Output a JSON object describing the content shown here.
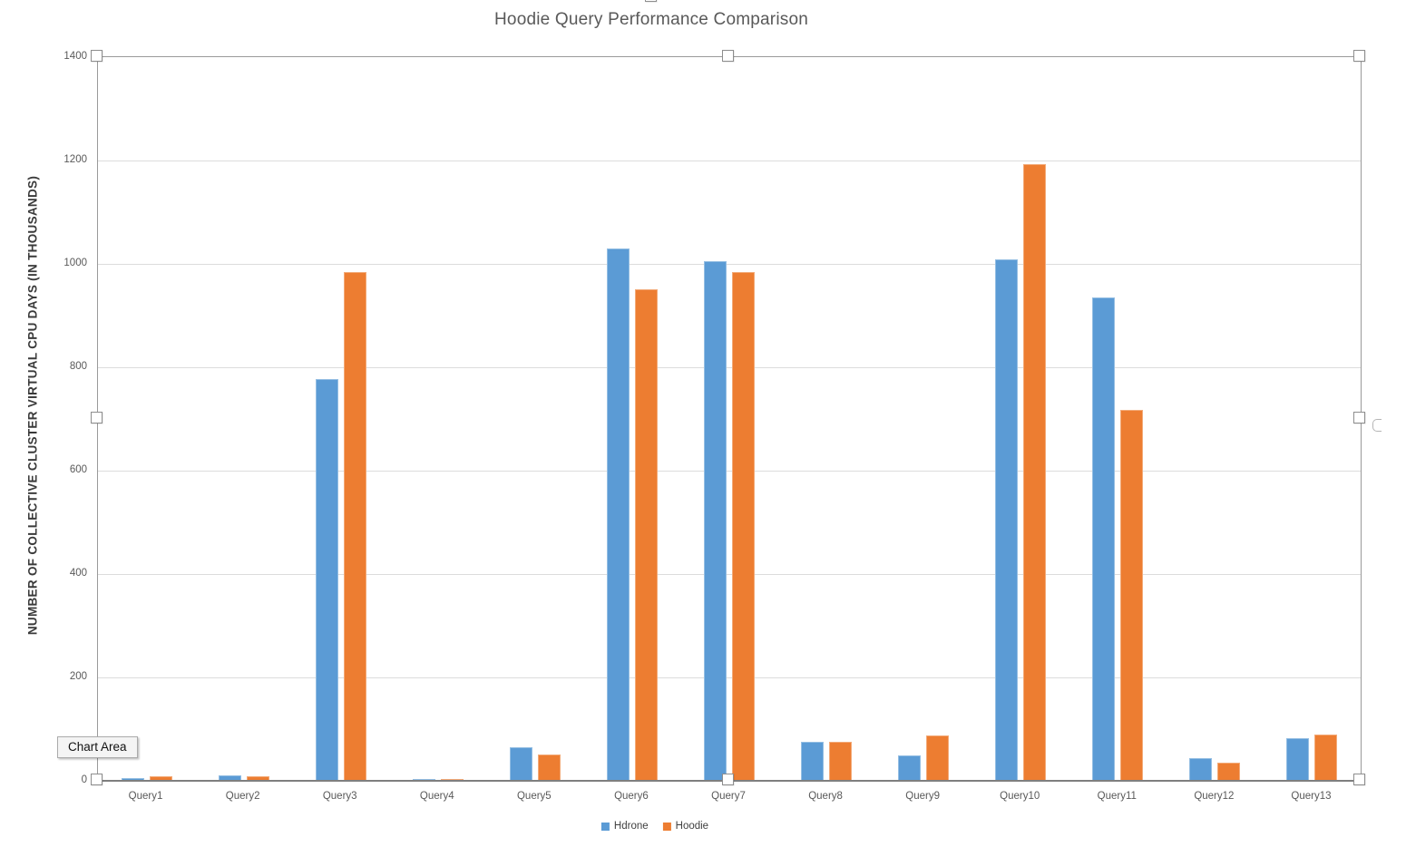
{
  "chart_data": {
    "type": "bar",
    "title": "Hoodie Query Performance Comparison",
    "xlabel": "",
    "ylabel": "NUMBER OF COLLECTIVE CLUSTER VIRTUAL CPU DAYS (IN THOUSANDS)",
    "categories": [
      "Query1",
      "Query2",
      "Query3",
      "Query4",
      "Query5",
      "Query6",
      "Query7",
      "Query8",
      "Query9",
      "Query10",
      "Query11",
      "Query12",
      "Query13"
    ],
    "series": [
      {
        "name": "Hdrone",
        "color": "#5b9bd5",
        "values": [
          5,
          10,
          777,
          4,
          65,
          1030,
          1005,
          75,
          49,
          1009,
          935,
          44,
          82
        ]
      },
      {
        "name": "Hoodie",
        "color": "#ed7d31",
        "values": [
          9,
          9,
          985,
          4,
          51,
          950,
          985,
          75,
          88,
          1193,
          718,
          35,
          89
        ]
      }
    ],
    "ylim": [
      0,
      1400
    ],
    "yticks": [
      0,
      200,
      400,
      600,
      800,
      1000,
      1200,
      1400
    ],
    "grid": true,
    "legend_position": "bottom"
  },
  "tooltip": {
    "label": "Chart Area"
  },
  "colors": {
    "grid": "#dcdcdc",
    "axis": "#7f7f7f",
    "tick_text": "#595959",
    "title_text": "#595959",
    "selection_handle_border": "#8e8e8e"
  }
}
